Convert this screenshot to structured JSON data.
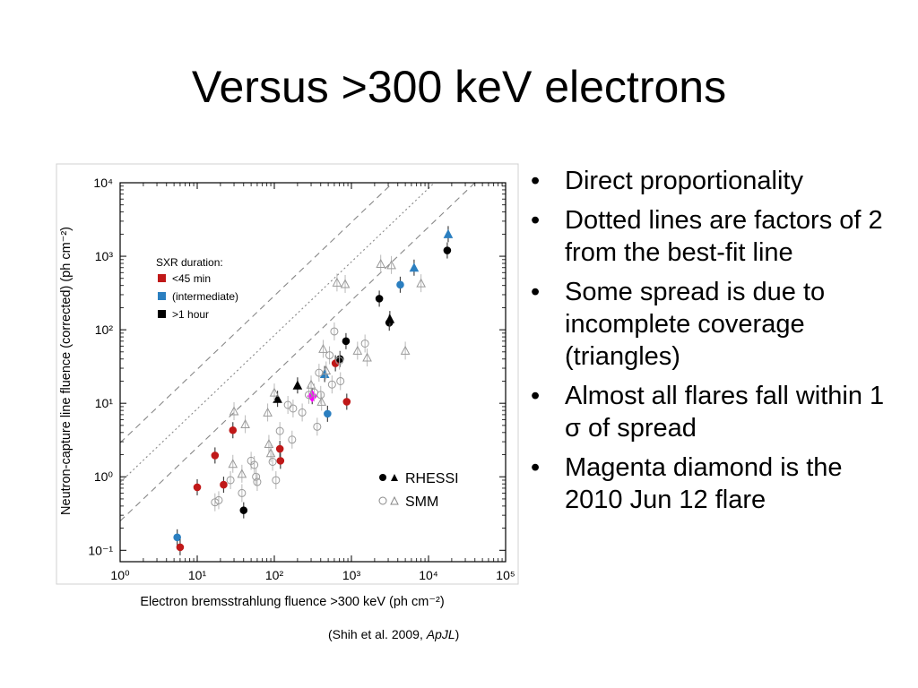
{
  "slide": {
    "title": "Versus >300 keV electrons",
    "bullets": [
      "Direct proportionality",
      "Dotted lines are factors of 2 from the best-fit line",
      "Some spread is due to incomplete coverage (triangles)",
      "Almost all flares fall within 1 σ of spread",
      "Magenta diamond is the 2010 Jun 12 flare"
    ],
    "bullet_glyph": "•",
    "citation": {
      "prefix": "(Shih et al. 2009, ",
      "journal": "ApJL",
      "suffix": ")"
    }
  },
  "chart_data": {
    "type": "scatter",
    "xlabel": "Electron bremsstrahlung fluence >300 keV (ph cm⁻²)",
    "ylabel": "Neutron-capture line fluence (corrected)  (ph cm⁻²)",
    "xscale": "log",
    "yscale": "log",
    "xlim": [
      1,
      100000
    ],
    "ylim": [
      0.07,
      10000
    ],
    "xticks": [
      "10⁰",
      "10¹",
      "10²",
      "10³",
      "10⁴",
      "10⁵"
    ],
    "yticks": [
      "10⁻¹",
      "10⁰",
      "10¹",
      "10²",
      "10³",
      "10⁴"
    ],
    "grid": false,
    "legend_color": {
      "title": "SXR duration:",
      "entries": [
        {
          "label": "<45 min",
          "color": "#c01818"
        },
        {
          "label": "(intermediate)",
          "color": "#2b7fc0"
        },
        {
          "label": ">1 hour",
          "color": "#000000"
        }
      ],
      "placement": "upper-left"
    },
    "legend_instrument": {
      "entries": [
        {
          "label": "RHESSI",
          "style": "filled"
        },
        {
          "label": "SMM",
          "style": "open"
        }
      ],
      "placement": "lower-right"
    },
    "lines": [
      {
        "kind": "dashed",
        "factor": 2.9
      },
      {
        "kind": "dotted",
        "factor": 0.84
      },
      {
        "kind": "dashed",
        "factor": 0.25
      }
    ],
    "series": [
      {
        "name": "RHESSI",
        "points": [
          {
            "x": 5.5,
            "y": 0.15,
            "shape": "circle",
            "color": "#2b7fc0"
          },
          {
            "x": 6,
            "y": 0.11,
            "shape": "circle",
            "color": "#c01818"
          },
          {
            "x": 10,
            "y": 0.72,
            "shape": "circle",
            "color": "#c01818"
          },
          {
            "x": 17,
            "y": 1.95,
            "shape": "circle",
            "color": "#c01818"
          },
          {
            "x": 22,
            "y": 0.78,
            "shape": "circle",
            "color": "#c01818"
          },
          {
            "x": 29,
            "y": 4.3,
            "shape": "circle",
            "color": "#c01818"
          },
          {
            "x": 40,
            "y": 0.35,
            "shape": "circle",
            "color": "#000000"
          },
          {
            "x": 118,
            "y": 2.4,
            "shape": "circle",
            "color": "#c01818"
          },
          {
            "x": 120,
            "y": 1.65,
            "shape": "circle",
            "color": "#c01818"
          },
          {
            "x": 110,
            "y": 11.5,
            "shape": "triangle",
            "color": "#000000"
          },
          {
            "x": 200,
            "y": 17.5,
            "shape": "triangle",
            "color": "#000000"
          },
          {
            "x": 450,
            "y": 25,
            "shape": "triangle",
            "color": "#2b7fc0"
          },
          {
            "x": 490,
            "y": 7.2,
            "shape": "circle",
            "color": "#2b7fc0"
          },
          {
            "x": 620,
            "y": 35,
            "shape": "circle",
            "color": "#c01818"
          },
          {
            "x": 710,
            "y": 40,
            "shape": "circle",
            "color": "#000000"
          },
          {
            "x": 850,
            "y": 70,
            "shape": "circle",
            "color": "#000000"
          },
          {
            "x": 870,
            "y": 10.5,
            "shape": "circle",
            "color": "#c01818"
          },
          {
            "x": 2300,
            "y": 265,
            "shape": "circle",
            "color": "#000000"
          },
          {
            "x": 3100,
            "y": 125,
            "shape": "circle",
            "color": "#000000"
          },
          {
            "x": 3150,
            "y": 140,
            "shape": "triangle",
            "color": "#000000"
          },
          {
            "x": 4300,
            "y": 410,
            "shape": "circle",
            "color": "#2b7fc0"
          },
          {
            "x": 6500,
            "y": 700,
            "shape": "triangle",
            "color": "#2b7fc0"
          },
          {
            "x": 17500,
            "y": 1200,
            "shape": "circle",
            "color": "#000000"
          },
          {
            "x": 18000,
            "y": 2000,
            "shape": "triangle",
            "color": "#2b7fc0"
          },
          {
            "x": 310,
            "y": 12.5,
            "shape": "diamond",
            "color": "#ff00ff"
          }
        ]
      },
      {
        "name": "SMM",
        "points": [
          {
            "x": 17,
            "y": 0.45,
            "shape": "circle"
          },
          {
            "x": 19,
            "y": 0.48,
            "shape": "circle"
          },
          {
            "x": 27,
            "y": 0.9,
            "shape": "circle"
          },
          {
            "x": 30,
            "y": 7.8,
            "shape": "triangle"
          },
          {
            "x": 29,
            "y": 1.5,
            "shape": "triangle"
          },
          {
            "x": 38,
            "y": 1.1,
            "shape": "triangle"
          },
          {
            "x": 38,
            "y": 0.6,
            "shape": "circle"
          },
          {
            "x": 42,
            "y": 5.2,
            "shape": "triangle"
          },
          {
            "x": 50,
            "y": 1.65,
            "shape": "circle"
          },
          {
            "x": 55,
            "y": 1.45,
            "shape": "circle"
          },
          {
            "x": 58,
            "y": 1.0,
            "shape": "circle"
          },
          {
            "x": 60,
            "y": 0.85,
            "shape": "circle"
          },
          {
            "x": 82,
            "y": 7.5,
            "shape": "triangle"
          },
          {
            "x": 85,
            "y": 2.8,
            "shape": "triangle"
          },
          {
            "x": 90,
            "y": 2.1,
            "shape": "triangle"
          },
          {
            "x": 95,
            "y": 1.6,
            "shape": "circle"
          },
          {
            "x": 100,
            "y": 14,
            "shape": "triangle"
          },
          {
            "x": 105,
            "y": 0.9,
            "shape": "circle"
          },
          {
            "x": 118,
            "y": 4.2,
            "shape": "circle"
          },
          {
            "x": 150,
            "y": 9.5,
            "shape": "circle"
          },
          {
            "x": 175,
            "y": 8.5,
            "shape": "circle"
          },
          {
            "x": 170,
            "y": 3.2,
            "shape": "circle"
          },
          {
            "x": 230,
            "y": 7.5,
            "shape": "circle"
          },
          {
            "x": 280,
            "y": 13,
            "shape": "circle"
          },
          {
            "x": 300,
            "y": 18,
            "shape": "triangle"
          },
          {
            "x": 330,
            "y": 14,
            "shape": "circle"
          },
          {
            "x": 360,
            "y": 4.8,
            "shape": "circle"
          },
          {
            "x": 380,
            "y": 26,
            "shape": "circle"
          },
          {
            "x": 400,
            "y": 13,
            "shape": "circle"
          },
          {
            "x": 410,
            "y": 10.5,
            "shape": "triangle"
          },
          {
            "x": 430,
            "y": 55,
            "shape": "triangle"
          },
          {
            "x": 470,
            "y": 28,
            "shape": "triangle"
          },
          {
            "x": 520,
            "y": 45,
            "shape": "circle"
          },
          {
            "x": 560,
            "y": 18,
            "shape": "circle"
          },
          {
            "x": 600,
            "y": 95,
            "shape": "circle"
          },
          {
            "x": 650,
            "y": 440,
            "shape": "triangle"
          },
          {
            "x": 700,
            "y": 38,
            "shape": "circle"
          },
          {
            "x": 720,
            "y": 20,
            "shape": "circle"
          },
          {
            "x": 830,
            "y": 420,
            "shape": "triangle"
          },
          {
            "x": 1200,
            "y": 52,
            "shape": "triangle"
          },
          {
            "x": 1500,
            "y": 65,
            "shape": "circle"
          },
          {
            "x": 1600,
            "y": 42,
            "shape": "triangle"
          },
          {
            "x": 2400,
            "y": 790,
            "shape": "triangle"
          },
          {
            "x": 3300,
            "y": 760,
            "shape": "triangle"
          },
          {
            "x": 5000,
            "y": 52,
            "shape": "triangle"
          },
          {
            "x": 8000,
            "y": 430,
            "shape": "triangle"
          }
        ]
      }
    ]
  }
}
